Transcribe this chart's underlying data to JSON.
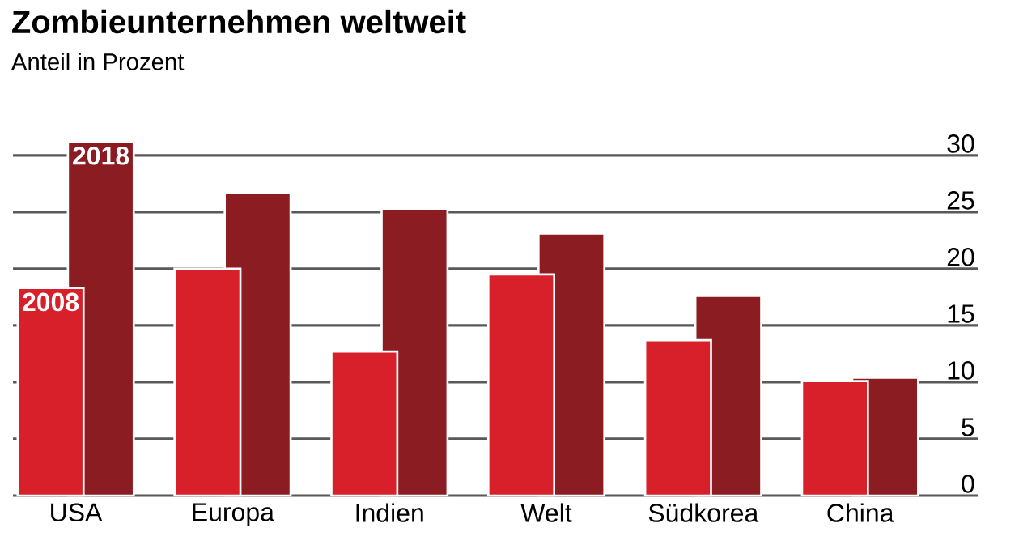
{
  "chart_data": {
    "type": "bar",
    "title": "Zombieunternehmen weltweit",
    "subtitle": "Anteil in Prozent",
    "categories": [
      "USA",
      "Europa",
      "Indien",
      "Welt",
      "Südkorea",
      "China"
    ],
    "series": [
      {
        "name": "2008",
        "color": "#d7202a",
        "values": [
          18.3,
          20.0,
          12.7,
          19.5,
          13.7,
          10.1
        ]
      },
      {
        "name": "2018",
        "color": "#8b1c22",
        "values": [
          31.2,
          26.7,
          25.3,
          23.1,
          17.6,
          10.4
        ]
      }
    ],
    "ylim": [
      0,
      31.5
    ],
    "yticks": [
      0,
      5,
      10,
      15,
      20,
      25,
      30
    ],
    "grid": "y"
  }
}
